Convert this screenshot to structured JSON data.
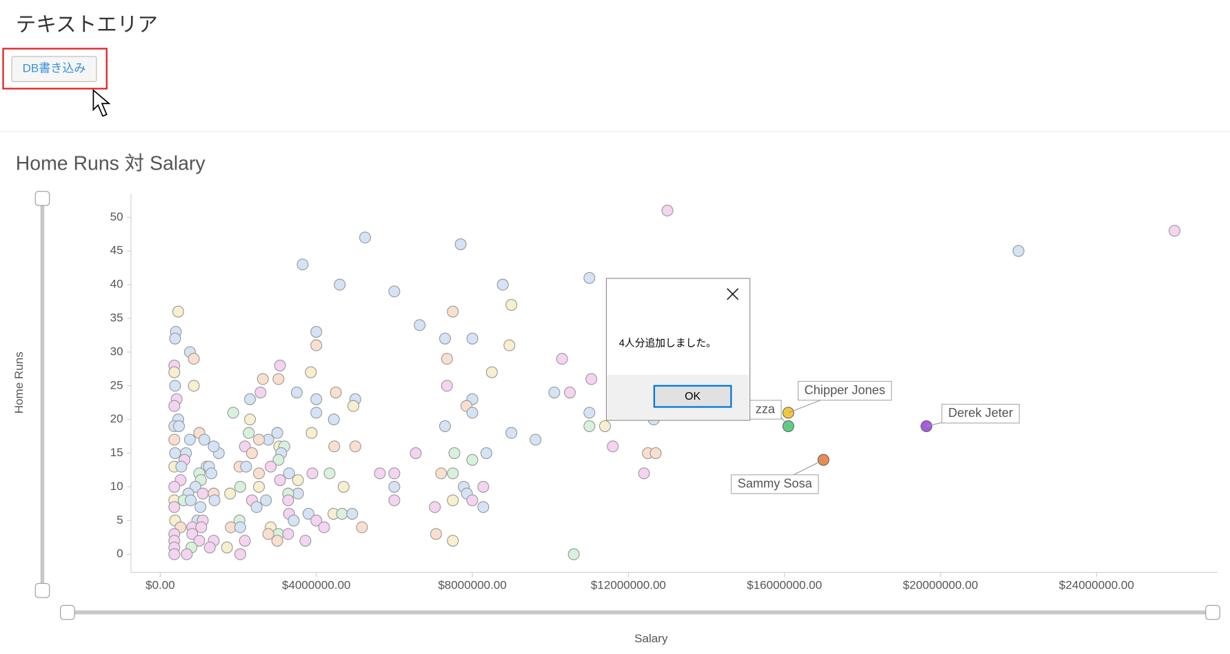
{
  "header": {
    "title": "テキストエリア",
    "button": "DB書き込み"
  },
  "dialog": {
    "message": "4人分追加しました。",
    "ok": "OK"
  },
  "chart_data": {
    "type": "scatter",
    "title": "Home Runs 対 Salary",
    "x_label": "Salary",
    "y_label": "Home Runs",
    "xlim": [
      -750000,
      27100000
    ],
    "ylim": [
      -2.7,
      53.5
    ],
    "xticks": [
      {
        "value": 0,
        "label": "$0.00"
      },
      {
        "value": 4000000,
        "label": "$4000000.00"
      },
      {
        "value": 8000000,
        "label": "$8000000.00"
      },
      {
        "value": 12000000,
        "label": "$12000000.00"
      },
      {
        "value": 16000000,
        "label": "$16000000.00"
      },
      {
        "value": 20000000,
        "label": "$20000000.00"
      },
      {
        "value": 24000000,
        "label": "$24000000.00"
      }
    ],
    "yticks": [
      0,
      5,
      10,
      15,
      20,
      25,
      30,
      35,
      40,
      45,
      50
    ],
    "points": [
      {
        "x": 16100000,
        "y": 21,
        "color": "#f2c83c",
        "label": "Chipper Jones"
      },
      {
        "x": 16100000,
        "y": 19,
        "color": "#5ccf86",
        "label": "zza"
      },
      {
        "x": 19640000,
        "y": 19,
        "color": "#a35ce0",
        "label": "Derek Jeter"
      },
      {
        "x": 17000000,
        "y": 14,
        "color": "#f08a4b",
        "label": "Sammy Sosa"
      },
      {
        "x": 13000000,
        "y": 51,
        "color": "#f4d4f0"
      },
      {
        "x": 26000000,
        "y": 48,
        "color": "#f4d4f0"
      },
      {
        "x": 22000000,
        "y": 45,
        "color": "#d4e3f5"
      },
      {
        "x": 5250000,
        "y": 47,
        "color": "#d4e3f5"
      },
      {
        "x": 7700000,
        "y": 46,
        "color": "#d4e3f5"
      },
      {
        "x": 3650000,
        "y": 43,
        "color": "#d4e3f5"
      },
      {
        "x": 4600000,
        "y": 40,
        "color": "#d4e3f5"
      },
      {
        "x": 6000000,
        "y": 39,
        "color": "#d4e3f5"
      },
      {
        "x": 8780000,
        "y": 40,
        "color": "#d4e3f5"
      },
      {
        "x": 11000000,
        "y": 41,
        "color": "#d4e3f5"
      },
      {
        "x": 9000000,
        "y": 37,
        "color": "#f7efcd"
      },
      {
        "x": 7500000,
        "y": 36,
        "color": "#fadfcf"
      },
      {
        "x": 6650000,
        "y": 34,
        "color": "#d4e3f5"
      },
      {
        "x": 4000000,
        "y": 33,
        "color": "#d4e3f5"
      },
      {
        "x": 4000000,
        "y": 31,
        "color": "#fadfcf"
      },
      {
        "x": 7300000,
        "y": 32,
        "color": "#d4e3f5"
      },
      {
        "x": 8000000,
        "y": 32,
        "color": "#d4e3f5"
      },
      {
        "x": 8950000,
        "y": 31,
        "color": "#f7efcd"
      },
      {
        "x": 10300000,
        "y": 29,
        "color": "#f4d4f0"
      },
      {
        "x": 7350000,
        "y": 29,
        "color": "#fadfcf"
      },
      {
        "x": 3070000,
        "y": 28,
        "color": "#f4d4f0"
      },
      {
        "x": 8500000,
        "y": 27,
        "color": "#f7efcd"
      },
      {
        "x": 3860000,
        "y": 27,
        "color": "#f7efcd"
      },
      {
        "x": 11050000,
        "y": 26,
        "color": "#f4d4f0"
      },
      {
        "x": 2630000,
        "y": 26,
        "color": "#fadfcf"
      },
      {
        "x": 3030000,
        "y": 26,
        "color": "#fadfcf"
      },
      {
        "x": 7350000,
        "y": 25,
        "color": "#f4d4f0"
      },
      {
        "x": 3500000,
        "y": 24,
        "color": "#d4e3f5"
      },
      {
        "x": 2570000,
        "y": 24,
        "color": "#f4d4f0"
      },
      {
        "x": 4500000,
        "y": 24,
        "color": "#fadfcf"
      },
      {
        "x": 10100000,
        "y": 24,
        "color": "#d4e3f5"
      },
      {
        "x": 10500000,
        "y": 24,
        "color": "#f4d4f0"
      },
      {
        "x": 2300000,
        "y": 23,
        "color": "#d4e3f5"
      },
      {
        "x": 4000000,
        "y": 23,
        "color": "#d4e3f5"
      },
      {
        "x": 5000000,
        "y": 23,
        "color": "#d4e3f5"
      },
      {
        "x": 8000000,
        "y": 23,
        "color": "#d4e3f5"
      },
      {
        "x": 7850000,
        "y": 22,
        "color": "#fadfcf"
      },
      {
        "x": 4950000,
        "y": 22,
        "color": "#f7efcd"
      },
      {
        "x": 11000000,
        "y": 21,
        "color": "#d4e3f5"
      },
      {
        "x": 4000000,
        "y": 21,
        "color": "#d4e3f5"
      },
      {
        "x": 8000000,
        "y": 21,
        "color": "#d4e3f5"
      },
      {
        "x": 1870000,
        "y": 21,
        "color": "#d6f2dc"
      },
      {
        "x": 4450000,
        "y": 20,
        "color": "#d4e3f5"
      },
      {
        "x": 2300000,
        "y": 20,
        "color": "#f7efcd"
      },
      {
        "x": 12650000,
        "y": 20,
        "color": "#d4e3f5"
      },
      {
        "x": 7300000,
        "y": 19,
        "color": "#d4e3f5"
      },
      {
        "x": 11000000,
        "y": 19,
        "color": "#d6f2dc"
      },
      {
        "x": 11400000,
        "y": 19,
        "color": "#f7efcd"
      },
      {
        "x": 3000000,
        "y": 18,
        "color": "#d4e3f5"
      },
      {
        "x": 3880000,
        "y": 18,
        "color": "#f7efcd"
      },
      {
        "x": 2270000,
        "y": 18,
        "color": "#d6f2dc"
      },
      {
        "x": 9000000,
        "y": 18,
        "color": "#d4e3f5"
      },
      {
        "x": 9620000,
        "y": 17,
        "color": "#d4e3f5"
      },
      {
        "x": 2770000,
        "y": 17,
        "color": "#d4e3f5"
      },
      {
        "x": 2530000,
        "y": 17,
        "color": "#fadfcf"
      },
      {
        "x": 11600000,
        "y": 16,
        "color": "#f4d4f0"
      },
      {
        "x": 4460000,
        "y": 16,
        "color": "#fadfcf"
      },
      {
        "x": 5000000,
        "y": 16,
        "color": "#fadfcf"
      },
      {
        "x": 3050000,
        "y": 16,
        "color": "#f7efcd"
      },
      {
        "x": 3180000,
        "y": 16,
        "color": "#d6f2dc"
      },
      {
        "x": 2170000,
        "y": 16,
        "color": "#f4d4f0"
      },
      {
        "x": 6550000,
        "y": 15,
        "color": "#f4d4f0"
      },
      {
        "x": 7540000,
        "y": 15,
        "color": "#d6f2dc"
      },
      {
        "x": 8360000,
        "y": 15,
        "color": "#d4e3f5"
      },
      {
        "x": 12500000,
        "y": 15,
        "color": "#fadfcf"
      },
      {
        "x": 12700000,
        "y": 15,
        "color": "#fadfcf"
      },
      {
        "x": 2350000,
        "y": 15,
        "color": "#fadfcf"
      },
      {
        "x": 3100000,
        "y": 15,
        "color": "#d4e3f5"
      },
      {
        "x": 8000000,
        "y": 14,
        "color": "#d6f2dc"
      },
      {
        "x": 3030000,
        "y": 14,
        "color": "#d6f2dc"
      },
      {
        "x": 2030000,
        "y": 13,
        "color": "#fadfcf"
      },
      {
        "x": 2200000,
        "y": 13,
        "color": "#d4e3f5"
      },
      {
        "x": 2830000,
        "y": 13,
        "color": "#f4d4f0"
      },
      {
        "x": 1190000,
        "y": 13,
        "color": "#d4e3f5"
      },
      {
        "x": 5630000,
        "y": 12,
        "color": "#f4d4f0"
      },
      {
        "x": 6000000,
        "y": 12,
        "color": "#f4d4f0"
      },
      {
        "x": 7200000,
        "y": 12,
        "color": "#fadfcf"
      },
      {
        "x": 7500000,
        "y": 12,
        "color": "#d6f2dc"
      },
      {
        "x": 12400000,
        "y": 12,
        "color": "#f4d4f0"
      },
      {
        "x": 3300000,
        "y": 12,
        "color": "#d4e3f5"
      },
      {
        "x": 3900000,
        "y": 12,
        "color": "#f4d4f0"
      },
      {
        "x": 4340000,
        "y": 12,
        "color": "#d6f2dc"
      },
      {
        "x": 2530000,
        "y": 12,
        "color": "#fadfcf"
      },
      {
        "x": 3530000,
        "y": 11,
        "color": "#f7efcd"
      },
      {
        "x": 3070000,
        "y": 11,
        "color": "#f4d4f0"
      },
      {
        "x": 6000000,
        "y": 10,
        "color": "#d4e3f5"
      },
      {
        "x": 8280000,
        "y": 10,
        "color": "#f4d4f0"
      },
      {
        "x": 7780000,
        "y": 10,
        "color": "#d4e3f5"
      },
      {
        "x": 4700000,
        "y": 10,
        "color": "#f7efcd"
      },
      {
        "x": 2050000,
        "y": 10,
        "color": "#d6f2dc"
      },
      {
        "x": 2530000,
        "y": 10,
        "color": "#f7efcd"
      },
      {
        "x": 7860000,
        "y": 9,
        "color": "#d4e3f5"
      },
      {
        "x": 3530000,
        "y": 9,
        "color": "#d4e3f5"
      },
      {
        "x": 3280000,
        "y": 9,
        "color": "#d6f2dc"
      },
      {
        "x": 1790000,
        "y": 9,
        "color": "#f7efcd"
      },
      {
        "x": 6000000,
        "y": 8,
        "color": "#f4d4f0"
      },
      {
        "x": 8000000,
        "y": 8,
        "color": "#f4d4f0"
      },
      {
        "x": 7500000,
        "y": 8,
        "color": "#f7efcd"
      },
      {
        "x": 3280000,
        "y": 8,
        "color": "#f4d4f0"
      },
      {
        "x": 2710000,
        "y": 8,
        "color": "#d4e3f5"
      },
      {
        "x": 2350000,
        "y": 8,
        "color": "#f4d4f0"
      },
      {
        "x": 8280000,
        "y": 7,
        "color": "#d4e3f5"
      },
      {
        "x": 7040000,
        "y": 7,
        "color": "#f4d4f0"
      },
      {
        "x": 2470000,
        "y": 7,
        "color": "#d4e3f5"
      },
      {
        "x": 3800000,
        "y": 6,
        "color": "#d4e3f5"
      },
      {
        "x": 4440000,
        "y": 6,
        "color": "#f7efcd"
      },
      {
        "x": 4660000,
        "y": 6,
        "color": "#d6f2dc"
      },
      {
        "x": 4920000,
        "y": 6,
        "color": "#d4e3f5"
      },
      {
        "x": 3300000,
        "y": 6,
        "color": "#f4d4f0"
      },
      {
        "x": 4000000,
        "y": 5,
        "color": "#f4d4f0"
      },
      {
        "x": 3420000,
        "y": 5,
        "color": "#d4e3f5"
      },
      {
        "x": 2030000,
        "y": 5,
        "color": "#d6f2dc"
      },
      {
        "x": 4200000,
        "y": 4,
        "color": "#f4d4f0"
      },
      {
        "x": 5170000,
        "y": 4,
        "color": "#fadfcf"
      },
      {
        "x": 2830000,
        "y": 4,
        "color": "#f7efcd"
      },
      {
        "x": 1810000,
        "y": 4,
        "color": "#fadfcf"
      },
      {
        "x": 2050000,
        "y": 4,
        "color": "#d4e3f5"
      },
      {
        "x": 7070000,
        "y": 3,
        "color": "#fadfcf"
      },
      {
        "x": 3030000,
        "y": 3,
        "color": "#d6f2dc"
      },
      {
        "x": 2770000,
        "y": 3,
        "color": "#fadfcf"
      },
      {
        "x": 3280000,
        "y": 3,
        "color": "#f4d4f0"
      },
      {
        "x": 7500000,
        "y": 2,
        "color": "#f7efcd"
      },
      {
        "x": 3720000,
        "y": 2,
        "color": "#f4d4f0"
      },
      {
        "x": 2170000,
        "y": 2,
        "color": "#f4d4f0"
      },
      {
        "x": 3000000,
        "y": 2,
        "color": "#fadfcf"
      },
      {
        "x": 1710000,
        "y": 1,
        "color": "#f7efcd"
      },
      {
        "x": 2050000,
        "y": 0,
        "color": "#f4d4f0"
      },
      {
        "x": 10600000,
        "y": 0,
        "color": "#d6f2dc"
      },
      {
        "x": 360000,
        "y": 28,
        "color": "#f4d4f0"
      },
      {
        "x": 400000,
        "y": 33,
        "color": "#d4e3f5"
      },
      {
        "x": 380000,
        "y": 32,
        "color": "#d4e3f5"
      },
      {
        "x": 460000,
        "y": 36,
        "color": "#f7efcd"
      },
      {
        "x": 760000,
        "y": 30,
        "color": "#d4e3f5"
      },
      {
        "x": 860000,
        "y": 29,
        "color": "#fadfcf"
      },
      {
        "x": 860000,
        "y": 25,
        "color": "#f7efcd"
      },
      {
        "x": 360000,
        "y": 27,
        "color": "#f7efcd"
      },
      {
        "x": 380000,
        "y": 25,
        "color": "#d4e3f5"
      },
      {
        "x": 420000,
        "y": 23,
        "color": "#f4d4f0"
      },
      {
        "x": 360000,
        "y": 22,
        "color": "#f4d4f0"
      },
      {
        "x": 460000,
        "y": 20,
        "color": "#d4e3f5"
      },
      {
        "x": 360000,
        "y": 19,
        "color": "#d4e3f5"
      },
      {
        "x": 480000,
        "y": 19,
        "color": "#d4e3f5"
      },
      {
        "x": 1000000,
        "y": 18,
        "color": "#fadfcf"
      },
      {
        "x": 760000,
        "y": 17,
        "color": "#d4e3f5"
      },
      {
        "x": 1130000,
        "y": 17,
        "color": "#d4e3f5"
      },
      {
        "x": 360000,
        "y": 17,
        "color": "#fadfcf"
      },
      {
        "x": 660000,
        "y": 15,
        "color": "#d4e3f5"
      },
      {
        "x": 380000,
        "y": 15,
        "color": "#d4e3f5"
      },
      {
        "x": 1500000,
        "y": 15,
        "color": "#d4e3f5"
      },
      {
        "x": 1370000,
        "y": 16,
        "color": "#d4e3f5"
      },
      {
        "x": 620000,
        "y": 14,
        "color": "#f4d4f0"
      },
      {
        "x": 360000,
        "y": 13,
        "color": "#f7efcd"
      },
      {
        "x": 540000,
        "y": 13,
        "color": "#d4e3f5"
      },
      {
        "x": 1250000,
        "y": 13,
        "color": "#d4e3f5"
      },
      {
        "x": 1310000,
        "y": 12,
        "color": "#d4e3f5"
      },
      {
        "x": 1000000,
        "y": 12,
        "color": "#d6f2dc"
      },
      {
        "x": 520000,
        "y": 11,
        "color": "#f4d4f0"
      },
      {
        "x": 1040000,
        "y": 11,
        "color": "#d6f2dc"
      },
      {
        "x": 360000,
        "y": 10,
        "color": "#f4d4f0"
      },
      {
        "x": 900000,
        "y": 10,
        "color": "#d4e3f5"
      },
      {
        "x": 1090000,
        "y": 9,
        "color": "#f4d4f0"
      },
      {
        "x": 1370000,
        "y": 9,
        "color": "#fadfcf"
      },
      {
        "x": 720000,
        "y": 9,
        "color": "#d4e3f5"
      },
      {
        "x": 360000,
        "y": 8,
        "color": "#f7efcd"
      },
      {
        "x": 600000,
        "y": 8,
        "color": "#d6f2dc"
      },
      {
        "x": 780000,
        "y": 8,
        "color": "#d4e3f5"
      },
      {
        "x": 1390000,
        "y": 8,
        "color": "#d4e3f5"
      },
      {
        "x": 1030000,
        "y": 7,
        "color": "#d4e3f5"
      },
      {
        "x": 360000,
        "y": 7,
        "color": "#f4d4f0"
      },
      {
        "x": 950000,
        "y": 5,
        "color": "#d4e3f5"
      },
      {
        "x": 380000,
        "y": 5,
        "color": "#f7efcd"
      },
      {
        "x": 1090000,
        "y": 5,
        "color": "#f4d4f0"
      },
      {
        "x": 520000,
        "y": 4,
        "color": "#fadfcf"
      },
      {
        "x": 820000,
        "y": 4,
        "color": "#f4d4f0"
      },
      {
        "x": 1050000,
        "y": 4,
        "color": "#f4d4f0"
      },
      {
        "x": 360000,
        "y": 3,
        "color": "#f4d4f0"
      },
      {
        "x": 820000,
        "y": 3,
        "color": "#f4d4f0"
      },
      {
        "x": 1000000,
        "y": 2,
        "color": "#f4d4f0"
      },
      {
        "x": 1370000,
        "y": 2,
        "color": "#f4d4f0"
      },
      {
        "x": 360000,
        "y": 2,
        "color": "#f4d4f0"
      },
      {
        "x": 360000,
        "y": 1,
        "color": "#f4d4f0"
      },
      {
        "x": 800000,
        "y": 1,
        "color": "#d6f2dc"
      },
      {
        "x": 680000,
        "y": 0,
        "color": "#f4d4f0"
      },
      {
        "x": 360000,
        "y": 0,
        "color": "#f4d4f0"
      },
      {
        "x": 1270000,
        "y": 1,
        "color": "#f4d4f0"
      }
    ]
  }
}
